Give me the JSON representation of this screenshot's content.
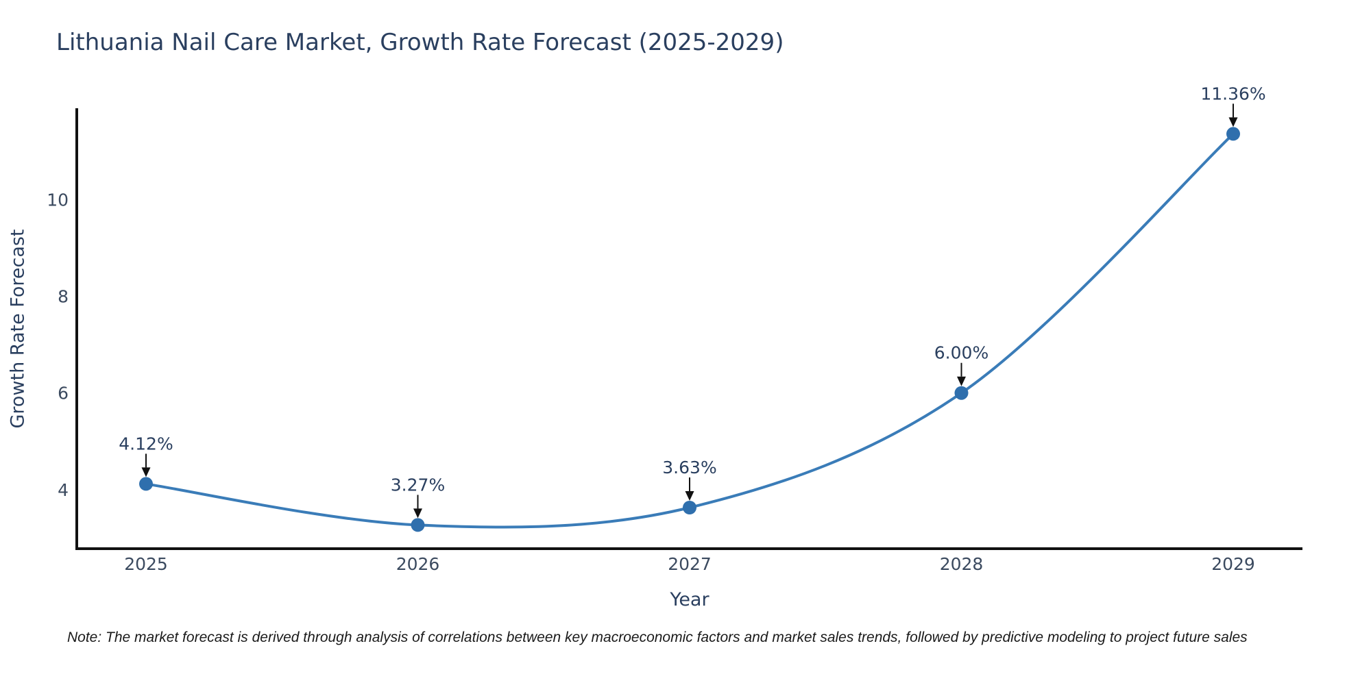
{
  "note": {
    "text": "Note: The market forecast is derived through analysis of correlations between key macroeconomic factors and market sales trends, followed by predictive modeling to project future sales"
  },
  "chart_data": {
    "type": "line",
    "title": "Lithuania Nail Care Market, Growth Rate Forecast (2025-2029)",
    "xlabel": "Year",
    "ylabel": "Growth Rate Forecast",
    "categories": [
      "2025",
      "2026",
      "2027",
      "2028",
      "2029"
    ],
    "series": [
      {
        "name": "Growth Rate Forecast",
        "values": [
          4.12,
          3.27,
          3.63,
          6.0,
          11.36
        ]
      }
    ],
    "point_labels": [
      "4.12%",
      "3.27%",
      "3.63%",
      "6.00%",
      "11.36%"
    ],
    "yticks": [
      4,
      6,
      8,
      10
    ],
    "ylim": [
      2.78,
      11.89
    ],
    "grid": false,
    "legend": "none",
    "line_shape": "spline",
    "annotations_have_arrows": true,
    "colors": {
      "line": "#3a7cb8",
      "marker": "#2f6fad",
      "axis": "#111111",
      "tick_label": "#3b4a5f",
      "title": "#2a3f5f",
      "annotation_text": "#2a3f5f",
      "annotation_arrow": "#111111",
      "background": "#ffffff"
    }
  }
}
